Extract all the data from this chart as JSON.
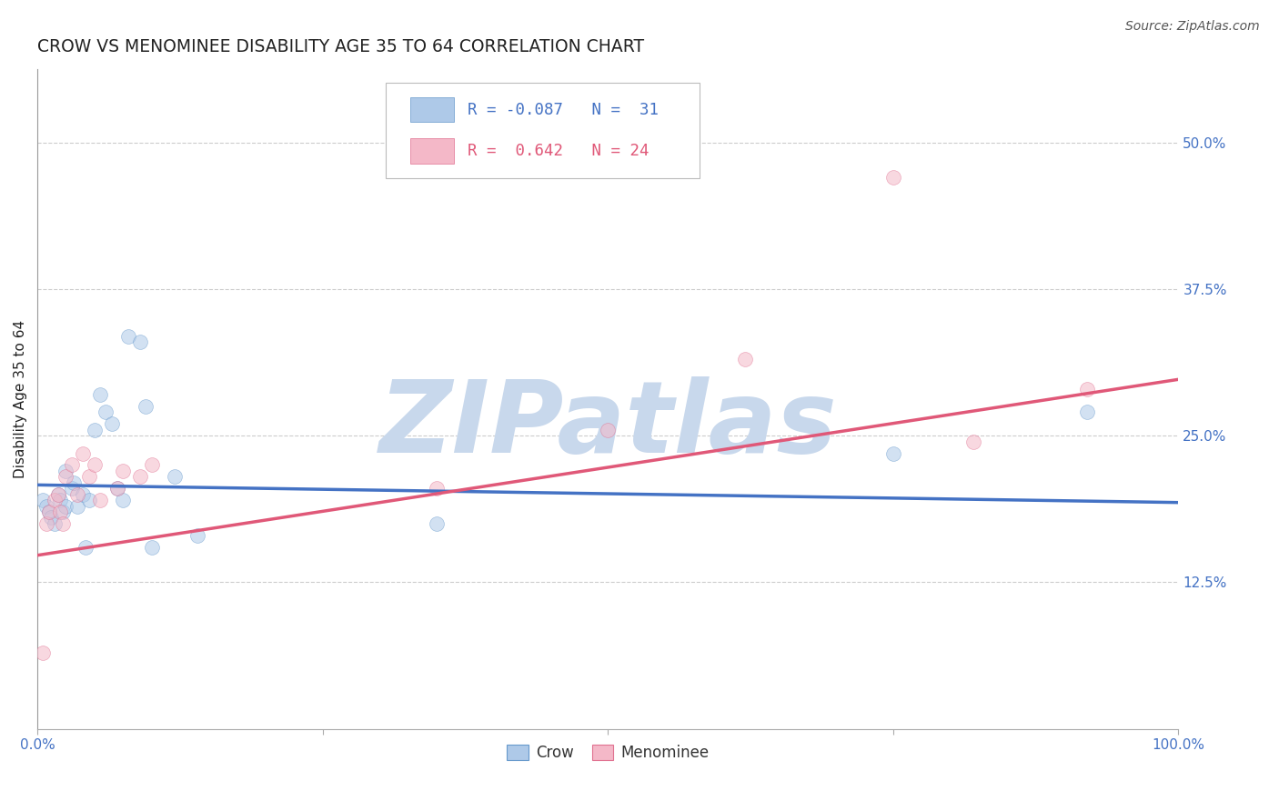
{
  "title": "CROW VS MENOMINEE DISABILITY AGE 35 TO 64 CORRELATION CHART",
  "source": "Source: ZipAtlas.com",
  "ylabel": "Disability Age 35 to 64",
  "xlim": [
    0,
    1.0
  ],
  "ylim": [
    0.0,
    0.5625
  ],
  "xtick_positions": [
    0.0,
    0.25,
    0.5,
    0.75,
    1.0
  ],
  "xtick_labels": [
    "0.0%",
    "",
    "",
    "",
    "100.0%"
  ],
  "ytick_positions": [
    0.125,
    0.25,
    0.375,
    0.5
  ],
  "ytick_labels": [
    "12.5%",
    "25.0%",
    "37.5%",
    "50.0%"
  ],
  "crow_R": -0.087,
  "crow_N": 31,
  "menominee_R": 0.642,
  "menominee_N": 24,
  "crow_color": "#aec9e8",
  "crow_edge_color": "#6699cc",
  "crow_line_color": "#4472c4",
  "menominee_color": "#f4b8c8",
  "menominee_edge_color": "#e07090",
  "menominee_line_color": "#e05878",
  "background_color": "#ffffff",
  "grid_color": "#cccccc",
  "title_color": "#222222",
  "source_color": "#555555",
  "tick_color": "#4472c4",
  "crow_x": [
    0.005,
    0.008,
    0.01,
    0.012,
    0.015,
    0.018,
    0.02,
    0.022,
    0.025,
    0.025,
    0.03,
    0.032,
    0.035,
    0.04,
    0.042,
    0.045,
    0.05,
    0.055,
    0.06,
    0.065,
    0.07,
    0.075,
    0.08,
    0.09,
    0.095,
    0.1,
    0.12,
    0.14,
    0.35,
    0.75,
    0.92
  ],
  "crow_y": [
    0.195,
    0.19,
    0.185,
    0.18,
    0.175,
    0.2,
    0.195,
    0.185,
    0.19,
    0.22,
    0.205,
    0.21,
    0.19,
    0.2,
    0.155,
    0.195,
    0.255,
    0.285,
    0.27,
    0.26,
    0.205,
    0.195,
    0.335,
    0.33,
    0.275,
    0.155,
    0.215,
    0.165,
    0.175,
    0.235,
    0.27
  ],
  "menominee_x": [
    0.005,
    0.008,
    0.01,
    0.015,
    0.018,
    0.02,
    0.022,
    0.025,
    0.03,
    0.035,
    0.04,
    0.045,
    0.05,
    0.055,
    0.07,
    0.075,
    0.09,
    0.1,
    0.35,
    0.5,
    0.62,
    0.75,
    0.82,
    0.92
  ],
  "menominee_y": [
    0.065,
    0.175,
    0.185,
    0.195,
    0.2,
    0.185,
    0.175,
    0.215,
    0.225,
    0.2,
    0.235,
    0.215,
    0.225,
    0.195,
    0.205,
    0.22,
    0.215,
    0.225,
    0.205,
    0.255,
    0.315,
    0.47,
    0.245,
    0.29
  ],
  "crow_trendline_x": [
    0.0,
    1.0
  ],
  "crow_trendline_y": [
    0.208,
    0.193
  ],
  "menominee_trendline_x": [
    0.0,
    1.0
  ],
  "menominee_trendline_y": [
    0.148,
    0.298
  ],
  "watermark": "ZIPatlas",
  "watermark_color": "#c8d8ec",
  "marker_size": 130,
  "marker_alpha": 0.55,
  "title_fontsize": 13.5,
  "source_fontsize": 10,
  "axis_label_fontsize": 11,
  "tick_fontsize": 11,
  "legend_fontsize": 12.5
}
